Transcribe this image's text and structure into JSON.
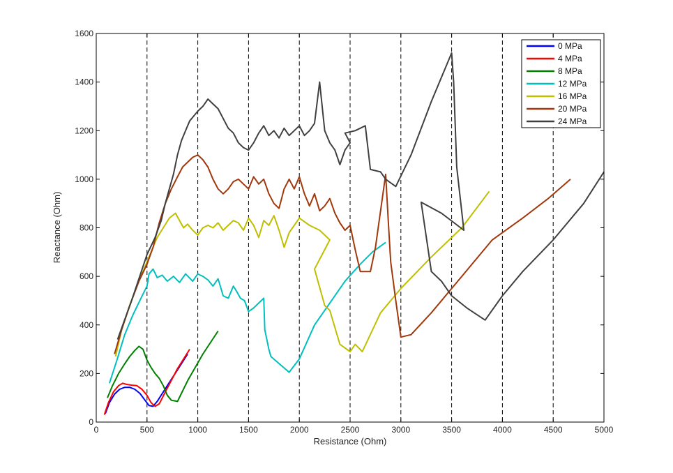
{
  "chart_data": {
    "type": "line",
    "title": "",
    "xlabel": "Resistance (Ohm)",
    "ylabel": "Reactance (Ohm)",
    "xlim": [
      0,
      5000
    ],
    "ylim": [
      0,
      1600
    ],
    "xticks": [
      0,
      500,
      1000,
      1500,
      2000,
      2500,
      3000,
      3500,
      4000,
      4500,
      5000
    ],
    "yticks": [
      0,
      200,
      400,
      600,
      800,
      1000,
      1200,
      1400,
      1600
    ],
    "grid": "dashed vertical lines at x ticks",
    "legend_position": "top-right",
    "series": [
      {
        "name": "0 MPa",
        "color": "#0000ff",
        "points": [
          [
            90,
            35
          ],
          [
            130,
            80
          ],
          [
            180,
            115
          ],
          [
            230,
            135
          ],
          [
            280,
            143
          ],
          [
            330,
            143
          ],
          [
            380,
            135
          ],
          [
            430,
            118
          ],
          [
            480,
            90
          ],
          [
            520,
            68
          ],
          [
            560,
            65
          ],
          [
            600,
            85
          ],
          [
            700,
            150
          ],
          [
            800,
            215
          ],
          [
            900,
            280
          ]
        ]
      },
      {
        "name": "4 MPa",
        "color": "#ff0000",
        "points": [
          [
            80,
            30
          ],
          [
            120,
            80
          ],
          [
            170,
            125
          ],
          [
            220,
            150
          ],
          [
            260,
            160
          ],
          [
            300,
            155
          ],
          [
            350,
            152
          ],
          [
            400,
            150
          ],
          [
            450,
            135
          ],
          [
            500,
            110
          ],
          [
            540,
            80
          ],
          [
            580,
            65
          ],
          [
            620,
            75
          ],
          [
            700,
            140
          ],
          [
            800,
            220
          ],
          [
            920,
            300
          ]
        ]
      },
      {
        "name": "8 MPa",
        "color": "#008000",
        "points": [
          [
            110,
            100
          ],
          [
            160,
            150
          ],
          [
            220,
            200
          ],
          [
            280,
            240
          ],
          [
            330,
            270
          ],
          [
            380,
            295
          ],
          [
            420,
            312
          ],
          [
            460,
            300
          ],
          [
            500,
            255
          ],
          [
            540,
            225
          ],
          [
            580,
            200
          ],
          [
            620,
            180
          ],
          [
            660,
            150
          ],
          [
            700,
            110
          ],
          [
            740,
            90
          ],
          [
            800,
            85
          ],
          [
            900,
            170
          ],
          [
            1050,
            280
          ],
          [
            1200,
            375
          ]
        ]
      },
      {
        "name": "12 MPa",
        "color": "#00bfbf",
        "points": [
          [
            130,
            160
          ],
          [
            200,
            250
          ],
          [
            280,
            360
          ],
          [
            360,
            440
          ],
          [
            440,
            510
          ],
          [
            500,
            560
          ],
          [
            520,
            610
          ],
          [
            560,
            630
          ],
          [
            600,
            595
          ],
          [
            650,
            605
          ],
          [
            700,
            580
          ],
          [
            760,
            600
          ],
          [
            820,
            575
          ],
          [
            880,
            610
          ],
          [
            950,
            580
          ],
          [
            1000,
            610
          ],
          [
            1050,
            600
          ],
          [
            1100,
            585
          ],
          [
            1150,
            560
          ],
          [
            1200,
            590
          ],
          [
            1250,
            520
          ],
          [
            1300,
            510
          ],
          [
            1350,
            560
          ],
          [
            1380,
            540
          ],
          [
            1420,
            510
          ],
          [
            1460,
            500
          ],
          [
            1500,
            455
          ],
          [
            1550,
            470
          ],
          [
            1600,
            490
          ],
          [
            1650,
            510
          ],
          [
            1660,
            380
          ],
          [
            1700,
            300
          ],
          [
            1720,
            270
          ],
          [
            1900,
            205
          ],
          [
            2000,
            260
          ],
          [
            2150,
            400
          ],
          [
            2300,
            490
          ],
          [
            2450,
            580
          ],
          [
            2600,
            650
          ],
          [
            2720,
            700
          ],
          [
            2850,
            740
          ]
        ]
      },
      {
        "name": "16 MPa",
        "color": "#bfbf00",
        "points": [
          [
            190,
            270
          ],
          [
            250,
            380
          ],
          [
            320,
            470
          ],
          [
            400,
            560
          ],
          [
            480,
            640
          ],
          [
            520,
            680
          ],
          [
            560,
            720
          ],
          [
            600,
            760
          ],
          [
            660,
            800
          ],
          [
            720,
            840
          ],
          [
            780,
            860
          ],
          [
            820,
            830
          ],
          [
            860,
            800
          ],
          [
            900,
            815
          ],
          [
            950,
            790
          ],
          [
            1000,
            770
          ],
          [
            1050,
            800
          ],
          [
            1100,
            810
          ],
          [
            1150,
            800
          ],
          [
            1200,
            820
          ],
          [
            1250,
            790
          ],
          [
            1300,
            810
          ],
          [
            1350,
            830
          ],
          [
            1400,
            820
          ],
          [
            1450,
            790
          ],
          [
            1500,
            840
          ],
          [
            1550,
            810
          ],
          [
            1600,
            760
          ],
          [
            1650,
            830
          ],
          [
            1700,
            810
          ],
          [
            1750,
            850
          ],
          [
            1800,
            790
          ],
          [
            1850,
            720
          ],
          [
            1900,
            780
          ],
          [
            2000,
            840
          ],
          [
            2100,
            810
          ],
          [
            2200,
            790
          ],
          [
            2300,
            750
          ],
          [
            2150,
            630
          ],
          [
            2250,
            480
          ],
          [
            2300,
            460
          ],
          [
            2400,
            320
          ],
          [
            2500,
            290
          ],
          [
            2550,
            320
          ],
          [
            2620,
            290
          ],
          [
            2800,
            450
          ],
          [
            3000,
            550
          ],
          [
            3300,
            680
          ],
          [
            3600,
            800
          ],
          [
            3870,
            950
          ]
        ]
      },
      {
        "name": "20 MPa",
        "color": "#a0380c",
        "points": [
          [
            180,
            280
          ],
          [
            250,
            380
          ],
          [
            330,
            480
          ],
          [
            420,
            580
          ],
          [
            500,
            650
          ],
          [
            560,
            720
          ],
          [
            620,
            820
          ],
          [
            680,
            900
          ],
          [
            740,
            960
          ],
          [
            800,
            1010
          ],
          [
            850,
            1050
          ],
          [
            900,
            1070
          ],
          [
            950,
            1090
          ],
          [
            1000,
            1100
          ],
          [
            1050,
            1080
          ],
          [
            1100,
            1050
          ],
          [
            1150,
            1000
          ],
          [
            1200,
            960
          ],
          [
            1250,
            940
          ],
          [
            1300,
            960
          ],
          [
            1350,
            990
          ],
          [
            1400,
            1000
          ],
          [
            1450,
            980
          ],
          [
            1500,
            960
          ],
          [
            1550,
            1010
          ],
          [
            1600,
            980
          ],
          [
            1650,
            1000
          ],
          [
            1700,
            940
          ],
          [
            1750,
            900
          ],
          [
            1800,
            880
          ],
          [
            1850,
            960
          ],
          [
            1900,
            1000
          ],
          [
            1950,
            960
          ],
          [
            2000,
            1010
          ],
          [
            2050,
            940
          ],
          [
            2100,
            890
          ],
          [
            2150,
            940
          ],
          [
            2200,
            870
          ],
          [
            2250,
            890
          ],
          [
            2300,
            920
          ],
          [
            2350,
            860
          ],
          [
            2400,
            820
          ],
          [
            2450,
            790
          ],
          [
            2500,
            810
          ],
          [
            2550,
            710
          ],
          [
            2600,
            620
          ],
          [
            2700,
            620
          ],
          [
            2750,
            720
          ],
          [
            2850,
            1020
          ],
          [
            2880,
            800
          ],
          [
            2900,
            660
          ],
          [
            2950,
            500
          ],
          [
            3000,
            350
          ],
          [
            3100,
            360
          ],
          [
            3300,
            450
          ],
          [
            3600,
            600
          ],
          [
            3900,
            750
          ],
          [
            4200,
            840
          ],
          [
            4450,
            920
          ],
          [
            4670,
            1000
          ]
        ]
      },
      {
        "name": "24 MPa",
        "color": "#404040",
        "points": [
          [
            210,
            340
          ],
          [
            270,
            410
          ],
          [
            340,
            490
          ],
          [
            420,
            590
          ],
          [
            500,
            690
          ],
          [
            580,
            760
          ],
          [
            640,
            830
          ],
          [
            680,
            900
          ],
          [
            720,
            960
          ],
          [
            760,
            1020
          ],
          [
            800,
            1100
          ],
          [
            840,
            1160
          ],
          [
            880,
            1200
          ],
          [
            920,
            1240
          ],
          [
            960,
            1260
          ],
          [
            1000,
            1280
          ],
          [
            1050,
            1300
          ],
          [
            1100,
            1330
          ],
          [
            1150,
            1310
          ],
          [
            1200,
            1290
          ],
          [
            1250,
            1250
          ],
          [
            1300,
            1210
          ],
          [
            1350,
            1190
          ],
          [
            1400,
            1150
          ],
          [
            1450,
            1130
          ],
          [
            1500,
            1120
          ],
          [
            1550,
            1150
          ],
          [
            1600,
            1190
          ],
          [
            1650,
            1220
          ],
          [
            1700,
            1180
          ],
          [
            1750,
            1200
          ],
          [
            1800,
            1170
          ],
          [
            1850,
            1210
          ],
          [
            1900,
            1180
          ],
          [
            1950,
            1200
          ],
          [
            2000,
            1220
          ],
          [
            2050,
            1180
          ],
          [
            2100,
            1200
          ],
          [
            2150,
            1230
          ],
          [
            2200,
            1400
          ],
          [
            2250,
            1200
          ],
          [
            2300,
            1150
          ],
          [
            2350,
            1120
          ],
          [
            2400,
            1060
          ],
          [
            2450,
            1120
          ],
          [
            2500,
            1150
          ],
          [
            2450,
            1190
          ],
          [
            2550,
            1200
          ],
          [
            2650,
            1220
          ],
          [
            2700,
            1040
          ],
          [
            2800,
            1030
          ],
          [
            2850,
            1000
          ],
          [
            2950,
            970
          ],
          [
            3100,
            1100
          ],
          [
            3300,
            1320
          ],
          [
            3500,
            1520
          ],
          [
            3520,
            1400
          ],
          [
            3550,
            1050
          ],
          [
            3620,
            790
          ],
          [
            3400,
            860
          ],
          [
            3200,
            905
          ],
          [
            3300,
            620
          ],
          [
            3400,
            580
          ],
          [
            3500,
            520
          ],
          [
            3650,
            470
          ],
          [
            3830,
            420
          ],
          [
            4000,
            520
          ],
          [
            4200,
            620
          ],
          [
            4500,
            750
          ],
          [
            4800,
            900
          ],
          [
            5000,
            1030
          ]
        ]
      }
    ]
  }
}
